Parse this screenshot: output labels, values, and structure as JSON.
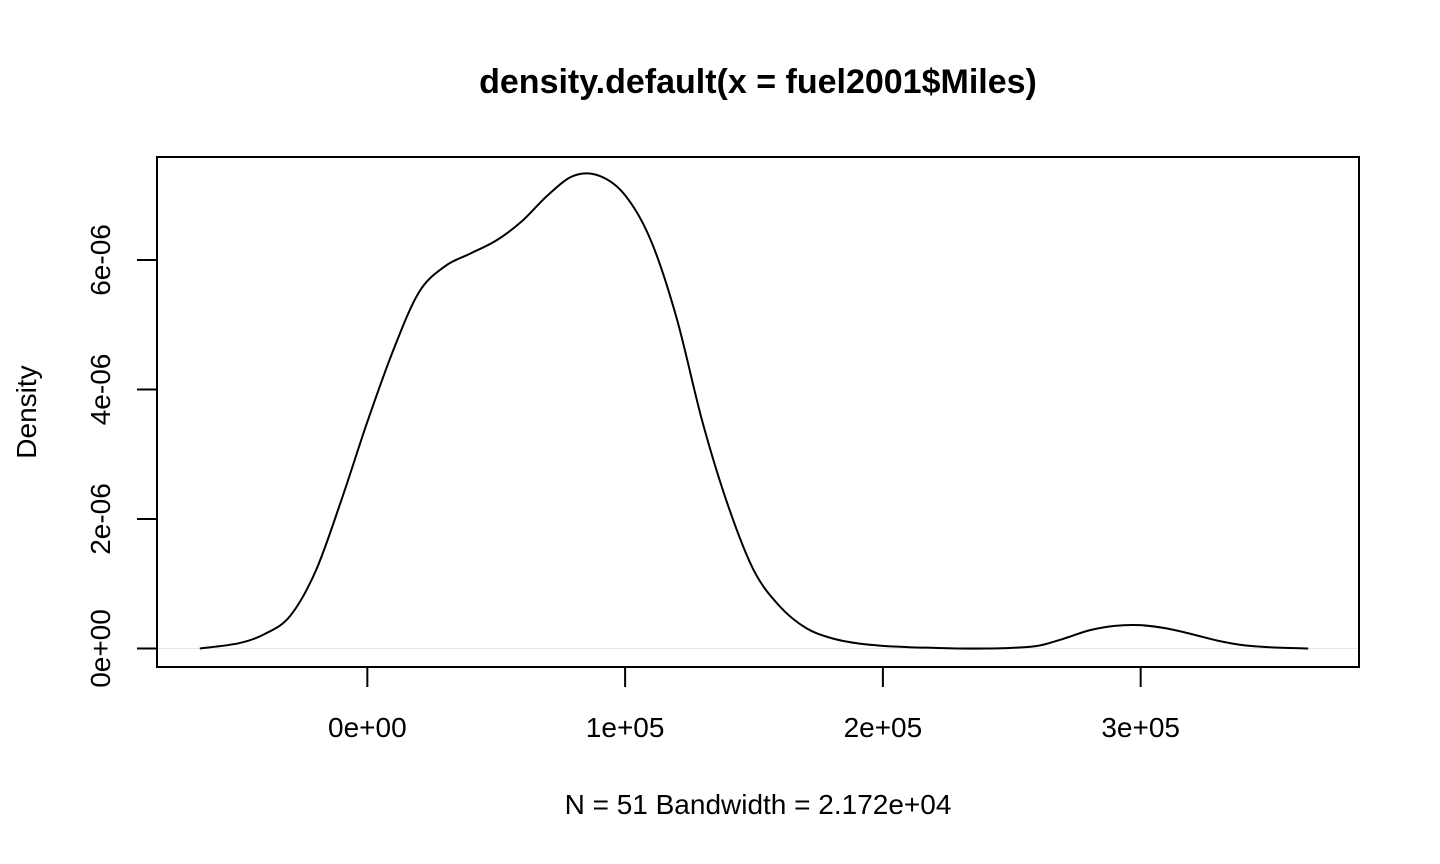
{
  "chart_data": {
    "type": "line",
    "title": "density.default(x = fuel2001$Miles)",
    "xlabel": "N = 51   Bandwidth = 2.172e+04",
    "ylabel": "Density",
    "xlim": [
      -81600,
      384700
    ],
    "ylim": [
      -2.86e-07,
      7.59e-06
    ],
    "x_ticks": [
      0,
      100000,
      200000,
      300000
    ],
    "x_tick_labels": [
      "0e+00",
      "1e+05",
      "2e+05",
      "3e+05"
    ],
    "y_ticks": [
      0,
      2e-06,
      4e-06,
      6e-06
    ],
    "y_tick_labels": [
      "0e+00",
      "2e-06",
      "4e-06",
      "6e-06"
    ],
    "zero_line": true,
    "grid": false,
    "series": [
      {
        "x": [
          -65000,
          -50000,
          -40000,
          -30000,
          -20000,
          -10000,
          0,
          10000,
          20000,
          30000,
          40000,
          50000,
          60000,
          70000,
          80000,
          90000,
          100000,
          110000,
          120000,
          130000,
          140000,
          150000,
          160000,
          170000,
          180000,
          190000,
          200000,
          210000,
          220000,
          230000,
          240000,
          250000,
          260000,
          270000,
          280000,
          290000,
          300000,
          310000,
          320000,
          330000,
          340000,
          350000,
          365000
        ],
        "y": [
          0.0,
          8e-08,
          2.2e-07,
          5e-07,
          1.2e-06,
          2.3e-06,
          3.5e-06,
          4.6e-06,
          5.5e-06,
          5.9e-06,
          6.1e-06,
          6.3e-06,
          6.6e-06,
          7e-06,
          7.3e-06,
          7.3e-06,
          7e-06,
          6.3e-06,
          5.1e-06,
          3.5e-06,
          2.2e-06,
          1.2e-06,
          6.5e-07,
          3.2e-07,
          1.6e-07,
          8e-08,
          4e-08,
          2e-08,
          1e-08,
          0.0,
          0.0,
          1e-08,
          4e-08,
          1.5e-07,
          2.8e-07,
          3.5e-07,
          3.6e-07,
          3.1e-07,
          2.2e-07,
          1.2e-07,
          5e-08,
          2e-08,
          0.0
        ]
      }
    ]
  }
}
